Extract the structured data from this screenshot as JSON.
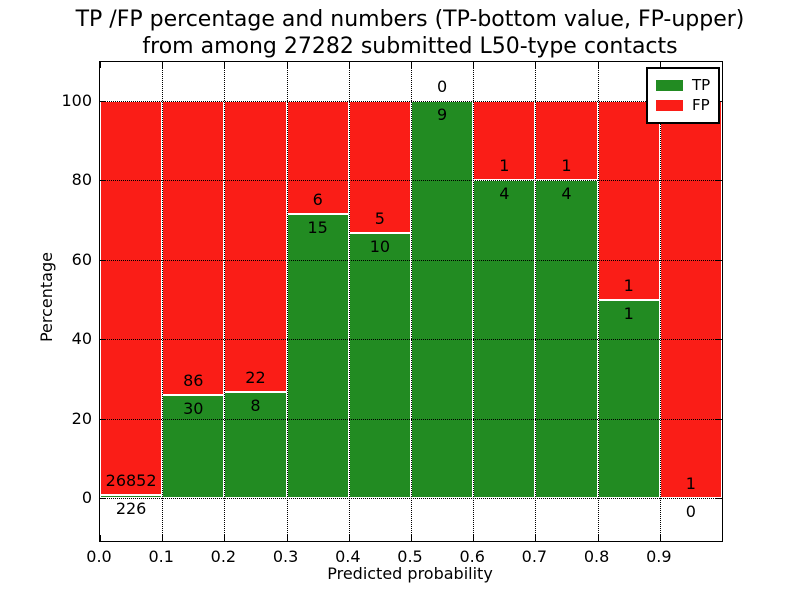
{
  "title": {
    "line1": "TP /FP percentage and numbers (TP-bottom value, FP-upper)",
    "line2": "from among 27282 submitted L50-type contacts"
  },
  "colors": {
    "tp": "#228b22",
    "fp": "#fa1d17",
    "grid": "#000000",
    "bar_edge": "#ffffff"
  },
  "legend": {
    "position": "upper right",
    "items": [
      {
        "label": "TP",
        "color": "#228b22"
      },
      {
        "label": "FP",
        "color": "#fa1d17"
      }
    ]
  },
  "chart_data": {
    "type": "bar",
    "subtype": "stacked-percentage-histogram",
    "title": "TP /FP percentage and numbers (TP-bottom value, FP-upper)\nfrom among 27282 submitted L50-type contacts",
    "xlabel": "Predicted probability",
    "ylabel": "Percentage",
    "xlim": [
      0.0,
      1.0
    ],
    "ylim": [
      -11,
      110
    ],
    "x_tick_labels": [
      "0.0",
      "0.1",
      "0.2",
      "0.3",
      "0.4",
      "0.5",
      "0.6",
      "0.7",
      "0.8",
      "0.9"
    ],
    "y_tick_values": [
      0,
      20,
      40,
      60,
      80,
      100
    ],
    "y_tick_labels": [
      "0",
      "20",
      "40",
      "60",
      "80",
      "100"
    ],
    "grid": true,
    "grid_style": "dotted",
    "legend_position": "upper right",
    "bin_width": 0.1,
    "annotation_note": "TP count printed below green/red boundary, FP count printed above it",
    "total_contacts": 27282,
    "bins": [
      {
        "x_range": [
          0.0,
          0.1
        ],
        "tp": 226,
        "fp": 26852,
        "tp_pct": 0.83,
        "fp_pct": 99.17
      },
      {
        "x_range": [
          0.1,
          0.2
        ],
        "tp": 30,
        "fp": 86,
        "tp_pct": 25.86,
        "fp_pct": 74.14
      },
      {
        "x_range": [
          0.2,
          0.3
        ],
        "tp": 8,
        "fp": 22,
        "tp_pct": 26.67,
        "fp_pct": 73.33
      },
      {
        "x_range": [
          0.3,
          0.4
        ],
        "tp": 15,
        "fp": 6,
        "tp_pct": 71.43,
        "fp_pct": 28.57
      },
      {
        "x_range": [
          0.4,
          0.5
        ],
        "tp": 10,
        "fp": 5,
        "tp_pct": 66.67,
        "fp_pct": 33.33
      },
      {
        "x_range": [
          0.5,
          0.6
        ],
        "tp": 9,
        "fp": 0,
        "tp_pct": 100.0,
        "fp_pct": 0.0
      },
      {
        "x_range": [
          0.6,
          0.7
        ],
        "tp": 4,
        "fp": 1,
        "tp_pct": 80.0,
        "fp_pct": 20.0
      },
      {
        "x_range": [
          0.7,
          0.8
        ],
        "tp": 4,
        "fp": 1,
        "tp_pct": 80.0,
        "fp_pct": 20.0
      },
      {
        "x_range": [
          0.8,
          0.9
        ],
        "tp": 1,
        "fp": 1,
        "tp_pct": 50.0,
        "fp_pct": 50.0
      },
      {
        "x_range": [
          0.9,
          1.0
        ],
        "tp": 0,
        "fp": 1,
        "tp_pct": 0.0,
        "fp_pct": 100.0
      }
    ],
    "series": [
      {
        "name": "TP",
        "color": "#228b22"
      },
      {
        "name": "FP",
        "color": "#fa1d17"
      }
    ]
  }
}
